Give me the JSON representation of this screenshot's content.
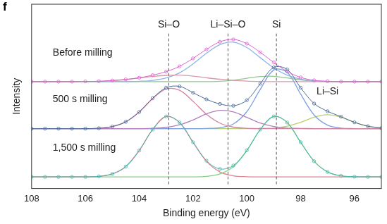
{
  "chart_data": {
    "type": "line",
    "title": "f",
    "x_label": "Binding energy (eV)",
    "y_label": "Intensity",
    "x": [
      108,
      107.5,
      107,
      106.5,
      106,
      105.5,
      105,
      104.5,
      104,
      103.5,
      103,
      102.5,
      102,
      101.5,
      101,
      100.5,
      100,
      99.5,
      99,
      98.5,
      98,
      97.5,
      97,
      96.5,
      96,
      95.5,
      95
    ],
    "xlim": [
      108,
      95
    ],
    "xticks": [
      108,
      106,
      104,
      102,
      100,
      98,
      96
    ],
    "ylim": [
      0,
      10
    ],
    "yticks": [],
    "tick_labels": "x",
    "grid": false,
    "reference_lines": [
      {
        "x": 102.9,
        "label": "Si–O"
      },
      {
        "x": 100.7,
        "label": "Li–Si–O"
      },
      {
        "x": 98.9,
        "label": "Si"
      }
    ],
    "annotations": [
      "Li–Si"
    ],
    "series": [
      {
        "name": "Before milling",
        "color": "#e060d0",
        "marker": "circle",
        "values": [
          5.8,
          5.8,
          5.8,
          5.8,
          5.81,
          5.82,
          5.86,
          5.92,
          6.01,
          6.15,
          6.34,
          6.63,
          7.06,
          7.55,
          7.96,
          8.09,
          7.86,
          7.39,
          6.84,
          6.35,
          6.03,
          5.87,
          5.82,
          5.8,
          5.8,
          5.8,
          5.8
        ]
      },
      {
        "name": "Si–O",
        "color": "#d89aa8",
        "marker": "none",
        "values": [
          5.8,
          5.8,
          5.8,
          5.8,
          5.81,
          5.82,
          5.86,
          5.91,
          6.0,
          6.08,
          6.14,
          6.15,
          6.1,
          6.01,
          5.93,
          5.87,
          5.83,
          5.81,
          5.8,
          5.8,
          5.8,
          5.8,
          5.8,
          5.8,
          5.8,
          5.8,
          5.8
        ]
      },
      {
        "name": "Li–Si–O",
        "color": "#8fb4e8",
        "marker": "none",
        "values": [
          5.8,
          5.8,
          5.8,
          5.8,
          5.8,
          5.8,
          5.8,
          5.8,
          5.82,
          5.87,
          6.0,
          6.28,
          6.76,
          7.34,
          7.81,
          7.94,
          7.65,
          7.1,
          6.55,
          6.15,
          5.93,
          5.84,
          5.81,
          5.8,
          5.8,
          5.8,
          5.8
        ]
      },
      {
        "name": "Si",
        "color": "#90c890",
        "marker": "none",
        "values": [
          5.8,
          5.8,
          5.8,
          5.8,
          5.8,
          5.8,
          5.8,
          5.8,
          5.8,
          5.8,
          5.8,
          5.8,
          5.8,
          5.8,
          5.82,
          5.88,
          5.98,
          6.08,
          6.09,
          6.0,
          5.9,
          5.83,
          5.81,
          5.8,
          5.8,
          5.8,
          5.8
        ]
      },
      {
        "name": "500 s milling",
        "color": "#4a6a9a",
        "marker": "circle",
        "values": [
          3.25,
          3.25,
          3.25,
          3.25,
          3.25,
          3.27,
          3.36,
          3.62,
          4.15,
          4.9,
          5.47,
          5.54,
          5.2,
          4.84,
          4.59,
          4.49,
          4.79,
          5.69,
          6.57,
          6.46,
          5.47,
          4.61,
          4.19,
          3.9,
          3.59,
          3.38,
          3.28
        ]
      },
      {
        "name": "Si–O",
        "color": "#d080a0",
        "marker": "none",
        "values": [
          3.25,
          3.25,
          3.25,
          3.25,
          3.25,
          3.27,
          3.36,
          3.62,
          4.15,
          4.88,
          5.4,
          5.33,
          4.73,
          4.03,
          3.55,
          3.33,
          3.27,
          3.25,
          3.25,
          3.25,
          3.25,
          3.25,
          3.25,
          3.25,
          3.25,
          3.25,
          3.25
        ]
      },
      {
        "name": "Li–Si–O",
        "color": "#b080c0",
        "marker": "none",
        "values": [
          3.25,
          3.25,
          3.25,
          3.25,
          3.25,
          3.25,
          3.25,
          3.25,
          3.25,
          3.27,
          3.32,
          3.46,
          3.72,
          4.05,
          4.24,
          4.16,
          3.86,
          3.55,
          3.36,
          3.28,
          3.26,
          3.25,
          3.25,
          3.25,
          3.25,
          3.25,
          3.25
        ]
      },
      {
        "name": "Si",
        "color": "#7aa0e0",
        "marker": "none",
        "values": [
          3.25,
          3.25,
          3.25,
          3.25,
          3.25,
          3.25,
          3.25,
          3.25,
          3.25,
          3.25,
          3.25,
          3.25,
          3.25,
          3.26,
          3.3,
          3.5,
          4.17,
          5.38,
          6.43,
          6.3,
          5.12,
          3.99,
          3.44,
          3.28,
          3.25,
          3.25,
          3.25
        ]
      },
      {
        "name": "Li–Si",
        "color": "#b8d070",
        "marker": "none",
        "values": [
          3.25,
          3.25,
          3.25,
          3.25,
          3.25,
          3.25,
          3.25,
          3.25,
          3.25,
          3.25,
          3.25,
          3.25,
          3.25,
          3.25,
          3.25,
          3.25,
          3.25,
          3.26,
          3.28,
          3.38,
          3.59,
          3.87,
          4.0,
          3.87,
          3.59,
          3.38,
          3.28
        ]
      },
      {
        "name": "1,500 s milling",
        "color": "#40b8b0",
        "marker": "circle",
        "values": [
          0.63,
          0.63,
          0.63,
          0.63,
          0.63,
          0.66,
          0.79,
          1.19,
          2.06,
          3.2,
          3.91,
          3.58,
          2.51,
          1.51,
          1.06,
          1.25,
          2.07,
          3.2,
          3.91,
          3.58,
          2.51,
          1.48,
          0.9,
          0.69,
          0.64,
          0.63,
          0.63
        ]
      },
      {
        "name": "Si–O",
        "color": "#e08090",
        "marker": "none",
        "values": [
          0.63,
          0.63,
          0.63,
          0.63,
          0.63,
          0.66,
          0.79,
          1.19,
          2.06,
          3.2,
          3.91,
          3.58,
          2.51,
          1.48,
          0.9,
          0.69,
          0.64,
          0.63,
          0.63,
          0.63,
          0.63,
          0.63,
          0.63,
          0.63,
          0.63,
          0.63,
          0.63
        ]
      },
      {
        "name": "Si",
        "color": "#80d080",
        "marker": "none",
        "values": [
          0.63,
          0.63,
          0.63,
          0.63,
          0.63,
          0.63,
          0.63,
          0.63,
          0.63,
          0.63,
          0.63,
          0.63,
          0.63,
          0.66,
          0.79,
          1.19,
          2.06,
          3.2,
          3.91,
          3.58,
          2.51,
          1.48,
          0.9,
          0.69,
          0.64,
          0.63,
          0.63
        ]
      }
    ]
  }
}
